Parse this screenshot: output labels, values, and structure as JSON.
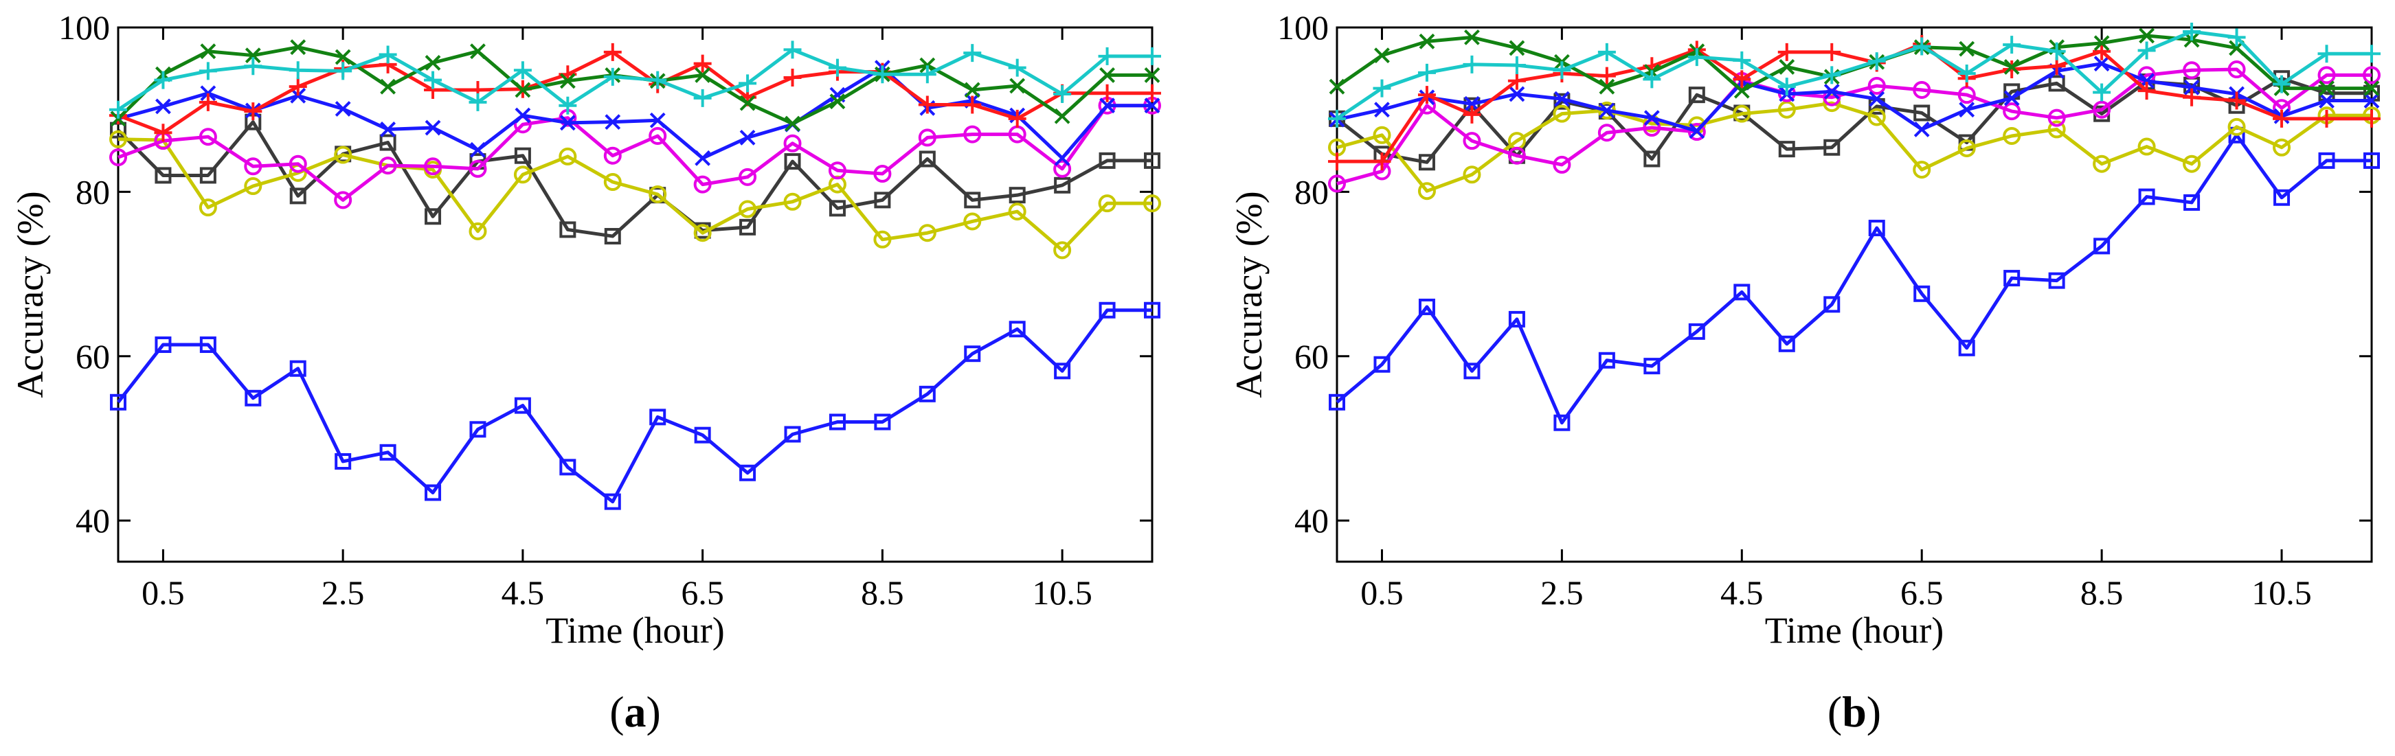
{
  "chart_data": [
    {
      "type": "line",
      "panel_label": "a",
      "xlabel": "Time (hour)",
      "ylabel": "Accuracy (%)",
      "xlim": [
        0,
        11.5
      ],
      "ylim": [
        35,
        100
      ],
      "x_ticks": [
        0.5,
        2.5,
        4.5,
        6.5,
        8.5,
        10.5
      ],
      "x_tick_labels": [
        "0.5",
        "2.5",
        "4.5",
        "6.5",
        "8.5",
        "10.5"
      ],
      "y_ticks": [
        40,
        60,
        80,
        100
      ],
      "y_tick_labels": [
        "40",
        "60",
        "80",
        "100"
      ],
      "x": [
        0,
        0.5,
        1,
        1.5,
        2,
        2.5,
        3,
        3.5,
        4,
        4.5,
        5,
        5.5,
        6,
        6.5,
        7,
        7.5,
        8,
        8.5,
        9,
        9.5,
        10,
        10.5,
        11,
        11.5
      ],
      "series": [
        {
          "name": "blue-square",
          "color": "#1a1aff",
          "marker": "square",
          "values": [
            54.4,
            61.4,
            61.4,
            54.9,
            58.5,
            47.2,
            48.3,
            43.4,
            51.1,
            54.0,
            46.5,
            42.3,
            52.6,
            50.4,
            45.8,
            50.5,
            52.0,
            52.0,
            55.4,
            60.3,
            63.3,
            58.2,
            65.6,
            65.6
          ]
        },
        {
          "name": "dark-gray-square",
          "color": "#3b3b3b",
          "marker": "square",
          "values": [
            87.5,
            82.0,
            82.0,
            88.5,
            79.5,
            84.6,
            86.0,
            77.0,
            83.7,
            84.4,
            75.4,
            74.6,
            79.6,
            75.3,
            75.7,
            83.7,
            78.0,
            79.0,
            84.0,
            79.0,
            79.6,
            80.8,
            83.8,
            83.8
          ]
        },
        {
          "name": "yellow-circle",
          "color": "#c8c800",
          "marker": "circle",
          "values": [
            86.4,
            86.3,
            78.1,
            80.7,
            82.3,
            84.5,
            83.2,
            82.7,
            75.2,
            82.1,
            84.3,
            81.2,
            79.7,
            75.0,
            77.9,
            78.8,
            80.9,
            74.2,
            75.0,
            76.4,
            77.6,
            72.9,
            78.6,
            78.6
          ]
        },
        {
          "name": "magenta-circle",
          "color": "#e600e6",
          "marker": "circle",
          "values": [
            84.2,
            86.2,
            86.7,
            83.1,
            83.4,
            79.0,
            83.2,
            83.1,
            82.8,
            88.2,
            89.0,
            84.4,
            86.8,
            80.9,
            81.8,
            85.9,
            82.6,
            82.2,
            86.6,
            87.0,
            87.0,
            82.8,
            90.5,
            90.5
          ]
        },
        {
          "name": "blue-x",
          "color": "#1a1aff",
          "marker": "x",
          "values": [
            88.9,
            90.4,
            92.0,
            89.9,
            91.7,
            90.1,
            87.6,
            87.8,
            85.1,
            89.3,
            88.4,
            88.5,
            88.7,
            84.1,
            86.6,
            88.2,
            91.8,
            95.1,
            90.2,
            91.1,
            89.3,
            84.1,
            90.5,
            90.5
          ]
        },
        {
          "name": "red-plus",
          "color": "#ff1a1a",
          "marker": "plus",
          "values": [
            89.3,
            87.2,
            90.9,
            89.8,
            92.8,
            95.0,
            95.5,
            92.4,
            92.4,
            92.5,
            94.3,
            97.0,
            93.1,
            95.6,
            91.5,
            93.9,
            94.6,
            94.6,
            90.6,
            90.6,
            88.9,
            92.0,
            92.0,
            92.0
          ]
        },
        {
          "name": "green-x",
          "color": "#128212",
          "marker": "x",
          "values": [
            88.9,
            94.3,
            97.1,
            96.6,
            97.6,
            96.4,
            92.8,
            95.7,
            97.1,
            92.4,
            93.5,
            94.2,
            93.5,
            94.2,
            90.8,
            88.3,
            91.0,
            94.3,
            95.4,
            92.4,
            92.9,
            89.2,
            94.2,
            94.2
          ]
        },
        {
          "name": "cyan-plus",
          "color": "#1ac8c8",
          "marker": "plus",
          "values": [
            90.0,
            93.6,
            94.7,
            95.3,
            94.8,
            94.7,
            96.7,
            93.6,
            90.9,
            94.8,
            90.5,
            94.0,
            93.6,
            91.4,
            93.2,
            97.3,
            95.1,
            94.3,
            94.3,
            96.9,
            95.1,
            91.9,
            96.5,
            96.5
          ]
        }
      ]
    },
    {
      "type": "line",
      "panel_label": "b",
      "xlabel": "Time (hour)",
      "ylabel": "Accuracy (%)",
      "xlim": [
        0,
        11.5
      ],
      "ylim": [
        35,
        100
      ],
      "x_ticks": [
        0.5,
        2.5,
        4.5,
        6.5,
        8.5,
        10.5
      ],
      "x_tick_labels": [
        "0.5",
        "2.5",
        "4.5",
        "6.5",
        "8.5",
        "10.5"
      ],
      "y_ticks": [
        40,
        60,
        80,
        100
      ],
      "y_tick_labels": [
        "40",
        "60",
        "80",
        "100"
      ],
      "x": [
        0,
        0.5,
        1,
        1.5,
        2,
        2.5,
        3,
        3.5,
        4,
        4.5,
        5,
        5.5,
        6,
        6.5,
        7,
        7.5,
        8,
        8.5,
        9,
        9.5,
        10,
        10.5,
        11,
        11.5
      ],
      "series": [
        {
          "name": "blue-square",
          "color": "#1a1aff",
          "marker": "square",
          "values": [
            54.4,
            59.0,
            66.0,
            58.2,
            64.5,
            51.9,
            59.5,
            58.8,
            63.0,
            67.8,
            61.5,
            66.3,
            75.6,
            67.6,
            61.0,
            69.5,
            69.2,
            73.4,
            79.4,
            78.7,
            86.9,
            79.3,
            83.8,
            83.8
          ]
        },
        {
          "name": "dark-gray-square",
          "color": "#3b3b3b",
          "marker": "square",
          "values": [
            88.9,
            84.6,
            83.6,
            90.5,
            84.4,
            91.0,
            89.8,
            84.0,
            91.8,
            89.6,
            85.2,
            85.4,
            90.4,
            89.6,
            86.0,
            92.2,
            93.2,
            89.5,
            93.4,
            93.0,
            90.5,
            93.8,
            92.0,
            92.0
          ]
        },
        {
          "name": "yellow-circle",
          "color": "#c8c800",
          "marker": "circle",
          "values": [
            85.4,
            86.9,
            80.1,
            82.1,
            86.2,
            89.5,
            89.9,
            88.3,
            88.1,
            89.5,
            90.0,
            90.8,
            89.1,
            82.7,
            85.3,
            86.8,
            87.6,
            83.4,
            85.5,
            83.4,
            87.9,
            85.4,
            89.3,
            89.3
          ]
        },
        {
          "name": "magenta-circle",
          "color": "#e600e6",
          "marker": "circle",
          "values": [
            81.0,
            82.5,
            90.5,
            86.2,
            84.4,
            83.3,
            87.2,
            87.8,
            87.3,
            93.5,
            92.0,
            91.5,
            92.9,
            92.4,
            91.8,
            89.8,
            89.0,
            90.0,
            94.2,
            94.8,
            94.9,
            90.2,
            94.2,
            94.2
          ]
        },
        {
          "name": "blue-x",
          "color": "#1a1aff",
          "marker": "x",
          "values": [
            88.8,
            90.0,
            91.5,
            90.7,
            91.9,
            91.3,
            89.9,
            89.0,
            87.4,
            93.3,
            91.9,
            92.2,
            91.3,
            87.6,
            90.0,
            91.4,
            94.7,
            95.6,
            93.5,
            92.7,
            91.9,
            89.2,
            91.1,
            91.1
          ]
        },
        {
          "name": "red-plus",
          "color": "#ff1a1a",
          "marker": "plus",
          "values": [
            83.7,
            83.7,
            91.8,
            89.4,
            93.5,
            94.4,
            94.1,
            95.3,
            97.3,
            93.7,
            97.0,
            97.0,
            95.7,
            98.0,
            93.8,
            94.9,
            95.3,
            97.1,
            92.3,
            91.5,
            91.1,
            88.9,
            88.9,
            88.9
          ]
        },
        {
          "name": "green-x",
          "color": "#128212",
          "marker": "x",
          "values": [
            92.8,
            96.6,
            98.3,
            98.8,
            97.5,
            95.8,
            92.8,
            94.6,
            97.1,
            92.3,
            95.2,
            94.0,
            95.8,
            97.6,
            97.4,
            95.2,
            97.6,
            98.1,
            99.0,
            98.5,
            97.5,
            92.6,
            92.6,
            92.6
          ]
        },
        {
          "name": "cyan-plus",
          "color": "#1ac8c8",
          "marker": "plus",
          "values": [
            88.9,
            92.6,
            94.5,
            95.5,
            95.4,
            94.8,
            97.0,
            93.7,
            96.4,
            96.0,
            92.8,
            94.2,
            95.9,
            97.7,
            94.4,
            97.9,
            97.1,
            92.1,
            97.2,
            99.5,
            98.8,
            93.1,
            96.8,
            96.8
          ]
        }
      ]
    }
  ]
}
